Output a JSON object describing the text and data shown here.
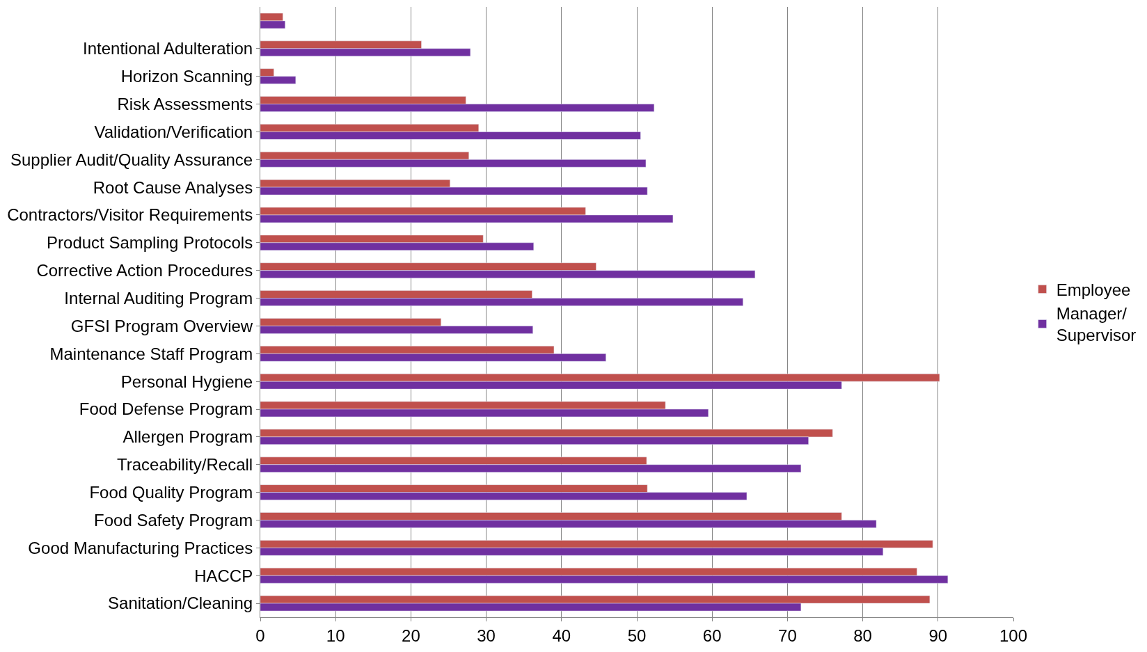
{
  "chart_data": {
    "type": "bar",
    "orientation": "horizontal",
    "categories": [
      null,
      "Intentional Adulteration",
      "Horizon Scanning",
      "Risk Assessments",
      "Validation/Verification",
      "Supplier Audit/Quality Assurance",
      "Root Cause Analyses",
      "Contractors/Visitor Requirements",
      "Product Sampling Protocols",
      "Corrective Action Procedures",
      "Internal Auditing Program",
      "GFSI Program Overview",
      "Maintenance Staff Program",
      "Personal Hygiene",
      "Food Defense Program",
      "Allergen Program",
      "Traceability/Recall",
      "Food Quality Program",
      "Food Safety Program",
      "Good Manufacturing Practices",
      "HACCP",
      "Sanitation/Cleaning"
    ],
    "series": [
      {
        "name": "Employee",
        "color": "#c0504d",
        "values": [
          3.0,
          21.4,
          1.8,
          27.3,
          29.0,
          27.7,
          25.2,
          43.2,
          29.6,
          44.6,
          36.1,
          24.0,
          39.0,
          90.2,
          53.8,
          76.0,
          51.3,
          51.4,
          77.2,
          89.3,
          87.2,
          88.9
        ]
      },
      {
        "name": "Manager/Supervisor",
        "color": "#7030a0",
        "values": [
          3.3,
          27.9,
          4.7,
          52.3,
          50.5,
          51.2,
          51.4,
          54.8,
          36.3,
          65.7,
          64.1,
          36.2,
          45.9,
          77.2,
          59.5,
          72.8,
          71.8,
          64.6,
          81.8,
          82.7,
          91.3,
          71.8
        ]
      }
    ],
    "xlim": [
      0,
      100
    ],
    "xticks": [
      0,
      10,
      20,
      30,
      40,
      50,
      60,
      70,
      80,
      90,
      100
    ],
    "grid": "x",
    "legend": "right"
  }
}
